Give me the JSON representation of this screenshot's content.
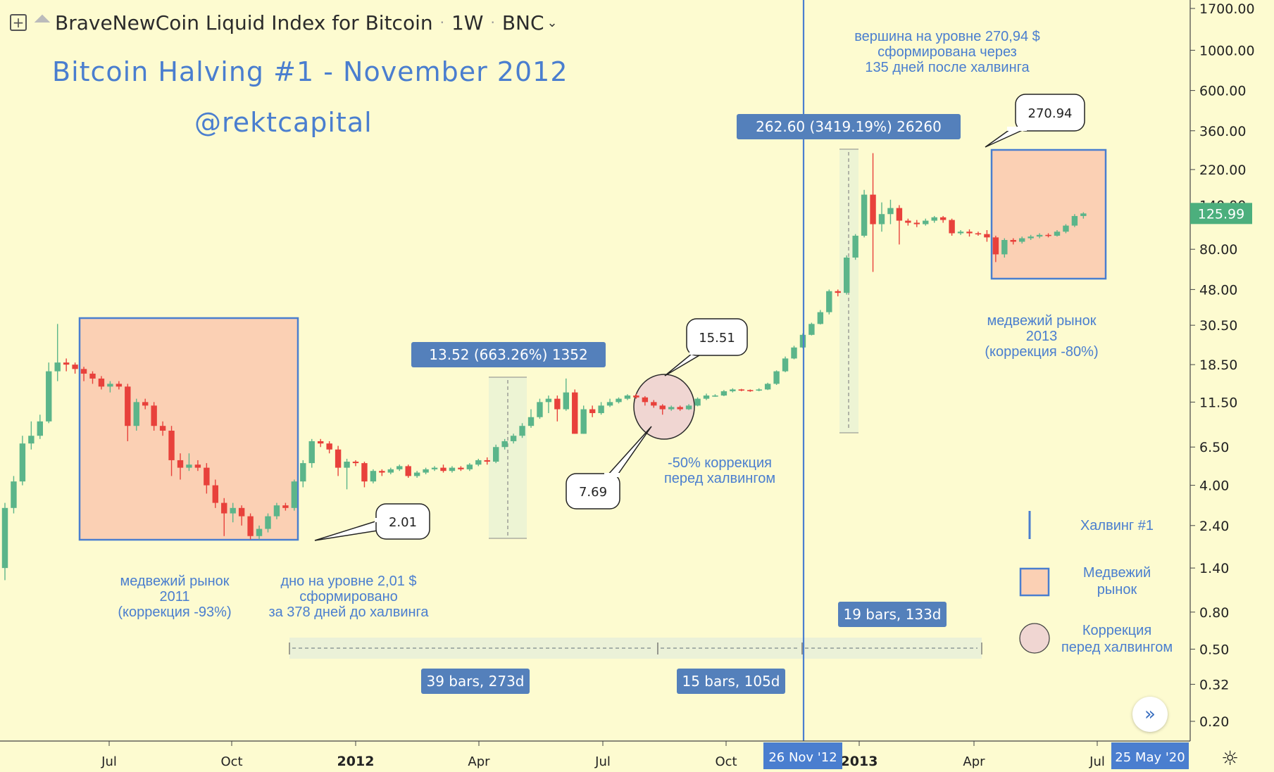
{
  "header": {
    "symbol_title": "BraveNewCoin Liquid Index for Bitcoin",
    "interval": "1W",
    "exchange": "BNC"
  },
  "chart_title": "Bitcoin Halving #1 - November 2012",
  "author": "@rektcapital",
  "chart_data": {
    "type": "candlestick",
    "y_scale": "log",
    "y_ticks": [
      "0.20",
      "0.32",
      "0.50",
      "0.80",
      "1.40",
      "2.40",
      "4.00",
      "6.50",
      "11.50",
      "18.50",
      "30.50",
      "48.00",
      "80.00",
      "140.00",
      "220.00",
      "360.00",
      "600.00",
      "1000.00",
      "1700.00"
    ],
    "x_ticks": [
      "Jul",
      "Oct",
      "2012",
      "Apr",
      "Jul",
      "Oct",
      "2013",
      "Apr",
      "Jul"
    ],
    "current_price": "125.99",
    "halving_date": "26 Nov '12",
    "cursor_date": "25 May '20",
    "candles": [
      [
        1.4,
        3.0,
        1.2,
        3.2
      ],
      [
        3.0,
        4.2,
        2.8,
        4.5
      ],
      [
        4.2,
        6.8,
        4.0,
        7.5
      ],
      [
        6.8,
        7.5,
        6.3,
        9.0
      ],
      [
        7.5,
        9.0,
        7.2,
        9.8
      ],
      [
        9.0,
        17.0,
        8.8,
        19.0
      ],
      [
        17.0,
        19.0,
        15.0,
        31.0
      ],
      [
        19.0,
        18.5,
        17.0,
        20.0
      ],
      [
        18.5,
        17.5,
        16.5,
        19.0
      ],
      [
        17.5,
        16.5,
        15.0,
        18.0
      ],
      [
        16.5,
        15.5,
        14.5,
        17.0
      ],
      [
        15.5,
        14.0,
        13.5,
        16.0
      ],
      [
        14.0,
        14.5,
        13.0,
        15.0
      ],
      [
        14.5,
        14.0,
        13.5,
        15.0
      ],
      [
        14.0,
        8.5,
        7.0,
        14.5
      ],
      [
        8.5,
        11.5,
        8.0,
        12.0
      ],
      [
        11.5,
        11.0,
        10.5,
        12.0
      ],
      [
        11.0,
        8.5,
        8.0,
        11.5
      ],
      [
        8.5,
        8.0,
        7.5,
        9.0
      ],
      [
        8.0,
        5.5,
        4.5,
        8.5
      ],
      [
        5.5,
        5.0,
        4.3,
        6.0
      ],
      [
        5.0,
        5.2,
        4.8,
        6.0
      ],
      [
        5.2,
        5.0,
        4.8,
        5.5
      ],
      [
        5.0,
        4.0,
        3.6,
        5.3
      ],
      [
        4.0,
        3.2,
        3.0,
        4.3
      ],
      [
        3.2,
        2.8,
        2.1,
        3.4
      ],
      [
        2.8,
        3.0,
        2.5,
        3.2
      ],
      [
        3.0,
        2.7,
        2.4,
        3.1
      ],
      [
        2.7,
        2.1,
        2.01,
        2.8
      ],
      [
        2.1,
        2.3,
        2.01,
        2.4
      ],
      [
        2.3,
        2.7,
        2.2,
        2.8
      ],
      [
        2.7,
        3.1,
        2.6,
        3.2
      ],
      [
        3.1,
        3.0,
        2.9,
        3.2
      ],
      [
        3.0,
        4.2,
        2.9,
        4.3
      ],
      [
        4.2,
        5.3,
        3.9,
        5.5
      ],
      [
        5.3,
        7.0,
        5.0,
        7.2
      ],
      [
        7.0,
        6.8,
        6.5,
        7.2
      ],
      [
        6.8,
        6.3,
        6.0,
        7.0
      ],
      [
        6.3,
        5.0,
        4.5,
        6.6
      ],
      [
        5.0,
        5.4,
        3.8,
        5.6
      ],
      [
        5.4,
        5.3,
        5.1,
        5.5
      ],
      [
        5.3,
        4.2,
        3.9,
        5.4
      ],
      [
        4.2,
        4.8,
        4.1,
        4.9
      ],
      [
        4.8,
        4.7,
        4.5,
        4.9
      ],
      [
        4.7,
        4.9,
        4.6,
        5.0
      ],
      [
        4.9,
        5.1,
        4.8,
        5.2
      ],
      [
        5.1,
        4.5,
        4.4,
        5.2
      ],
      [
        4.5,
        4.7,
        4.4,
        4.8
      ],
      [
        4.7,
        4.9,
        4.6,
        5.0
      ],
      [
        4.9,
        5.0,
        4.8,
        5.1
      ],
      [
        5.0,
        4.8,
        4.7,
        5.2
      ],
      [
        4.8,
        5.0,
        4.7,
        5.1
      ],
      [
        5.0,
        4.9,
        4.8,
        5.1
      ],
      [
        4.9,
        5.2,
        4.8,
        5.3
      ],
      [
        5.2,
        5.5,
        5.1,
        5.6
      ],
      [
        5.5,
        5.4,
        5.2,
        5.7
      ],
      [
        5.4,
        6.5,
        5.3,
        6.7
      ],
      [
        6.5,
        7.0,
        6.3,
        7.2
      ],
      [
        7.0,
        7.5,
        6.8,
        7.7
      ],
      [
        7.5,
        8.5,
        7.3,
        8.8
      ],
      [
        8.5,
        9.5,
        8.3,
        10.5
      ],
      [
        9.5,
        11.5,
        9.3,
        12.0
      ],
      [
        11.5,
        12.0,
        10.0,
        12.5
      ],
      [
        12.0,
        10.5,
        9.0,
        12.5
      ],
      [
        10.5,
        13.0,
        10.3,
        15.51
      ],
      [
        13.0,
        7.69,
        7.69,
        13.5
      ],
      [
        7.69,
        10.5,
        7.69,
        11.0
      ],
      [
        10.5,
        10.0,
        9.5,
        11.0
      ],
      [
        10.0,
        11.0,
        9.8,
        11.5
      ],
      [
        11.0,
        11.5,
        10.8,
        12.0
      ],
      [
        11.5,
        12.0,
        11.3,
        12.2
      ],
      [
        12.0,
        12.5,
        11.8,
        12.7
      ],
      [
        12.5,
        12.2,
        12.0,
        12.8
      ],
      [
        12.2,
        11.5,
        11.0,
        12.4
      ],
      [
        11.5,
        11.0,
        10.7,
        11.8
      ],
      [
        11.0,
        10.5,
        9.8,
        11.2
      ],
      [
        10.5,
        10.8,
        10.3,
        11.0
      ],
      [
        10.8,
        10.5,
        10.3,
        11.0
      ],
      [
        10.5,
        11.0,
        10.4,
        11.2
      ],
      [
        11.0,
        12.0,
        10.9,
        12.2
      ],
      [
        12.0,
        12.5,
        11.8,
        12.8
      ],
      [
        12.5,
        12.5,
        12.3,
        12.7
      ],
      [
        12.5,
        13.2,
        12.4,
        13.4
      ],
      [
        13.2,
        13.5,
        13.0,
        13.7
      ],
      [
        13.5,
        13.4,
        13.2,
        13.6
      ],
      [
        13.4,
        13.3,
        13.1,
        13.5
      ],
      [
        13.3,
        13.5,
        13.2,
        13.7
      ],
      [
        13.5,
        14.5,
        13.4,
        14.7
      ],
      [
        14.5,
        17.0,
        14.3,
        17.2
      ],
      [
        17.0,
        20.0,
        16.8,
        20.5
      ],
      [
        20.0,
        23.0,
        19.8,
        23.5
      ],
      [
        23.0,
        27.0,
        22.8,
        27.5
      ],
      [
        27.0,
        31.0,
        26.8,
        31.5
      ],
      [
        31.0,
        36.0,
        30.8,
        37.0
      ],
      [
        36.0,
        47.0,
        35.0,
        48.0
      ],
      [
        47.0,
        46.0,
        44.0,
        48.0
      ],
      [
        46.0,
        72.0,
        45.0,
        74.0
      ],
      [
        72.0,
        95.0,
        70.0,
        97.0
      ],
      [
        95.0,
        160.0,
        93.0,
        170.0
      ],
      [
        160.0,
        110.0,
        60.0,
        270.94
      ],
      [
        110.0,
        125.0,
        100.0,
        145.0
      ],
      [
        125.0,
        135.0,
        110.0,
        150.0
      ],
      [
        135.0,
        115.0,
        85.0,
        140.0
      ],
      [
        115.0,
        112.0,
        108.0,
        118.0
      ],
      [
        112.0,
        110.0,
        106.0,
        116.0
      ],
      [
        110.0,
        115.0,
        108.0,
        118.0
      ],
      [
        115.0,
        120.0,
        112.0,
        122.0
      ],
      [
        120.0,
        116.0,
        112.0,
        122.0
      ],
      [
        116.0,
        98.0,
        95.0,
        118.0
      ],
      [
        98.0,
        100.0,
        96.0,
        102.0
      ],
      [
        100.0,
        98.0,
        94.0,
        103.0
      ],
      [
        98.0,
        97.0,
        95.0,
        100.0
      ],
      [
        97.0,
        93.0,
        88.0,
        102.0
      ],
      [
        93.0,
        75.0,
        68.0,
        95.0
      ],
      [
        75.0,
        90.0,
        72.0,
        92.0
      ],
      [
        90.0,
        88.0,
        85.0,
        92.0
      ],
      [
        88.0,
        92.0,
        86.0,
        94.0
      ],
      [
        92.0,
        94.0,
        90.0,
        96.0
      ],
      [
        94.0,
        96.0,
        92.0,
        98.0
      ],
      [
        96.0,
        95.0,
        93.0,
        98.0
      ],
      [
        95.0,
        100.0,
        94.0,
        102.0
      ],
      [
        100.0,
        108.0,
        98.0,
        110.0
      ],
      [
        108.0,
        122.0,
        106.0,
        125.0
      ],
      [
        122.0,
        125.99,
        118.0,
        128.0
      ]
    ]
  },
  "measures": {
    "m1": "13.52 (663.26%) 1352",
    "m2": "262.60 (3419.19%) 26260",
    "r1": "39 bars, 273d",
    "r2": "15 bars, 105d",
    "r3": "19 bars, 133d"
  },
  "callouts": {
    "c1": "2.01",
    "c2": "7.69",
    "c3": "15.51",
    "c4": "270.94"
  },
  "notes": {
    "bear2011": [
      "медвежий рынок",
      "2011",
      "(коррекция -93%)"
    ],
    "bottom": [
      "дно на уровне 2,01 $",
      "сформировано",
      "за 378 дней до халвинга"
    ],
    "correction": [
      "-50% коррекция",
      "перед халвингом"
    ],
    "peak": [
      "вершина на уровне 270,94 $",
      "сформирована через",
      "135 дней после халвинга"
    ],
    "bear2013": [
      "медвежий рынок",
      "2013",
      "(коррекция -80%)"
    ]
  },
  "legend": {
    "halving": "Халвинг #1",
    "bear": [
      "Медвежий",
      "рынок"
    ],
    "corr": [
      "Коррекция",
      "перед халвингом"
    ]
  },
  "colors": {
    "background": "#fdfbd0",
    "up": "#5bb58a",
    "down": "#e8413b",
    "accent": "#4a7ecf",
    "tag": "#5480bb",
    "price_tag": "#4caf7d",
    "zone_fill": "#fbd0b4"
  }
}
